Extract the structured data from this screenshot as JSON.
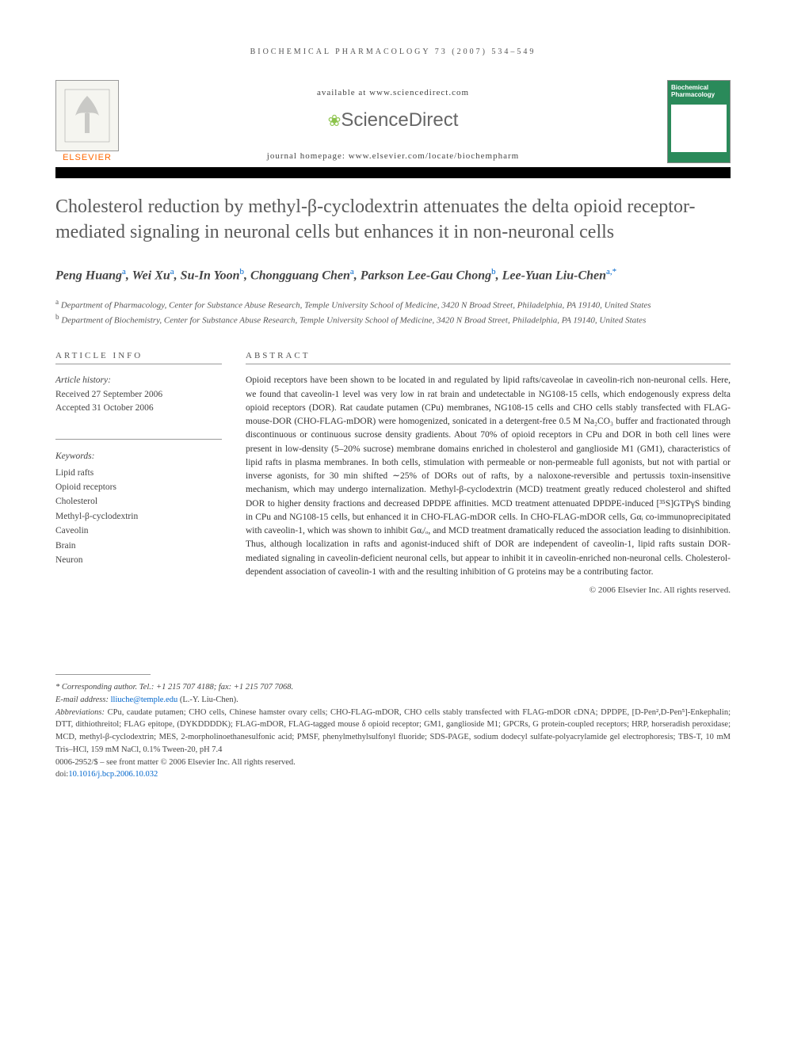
{
  "running_header": "BIOCHEMICAL PHARMACOLOGY 73 (2007) 534–549",
  "header": {
    "available_text": "available at www.sciencedirect.com",
    "sciencedirect_label": "ScienceDirect",
    "journal_homepage": "journal homepage: www.elsevier.com/locate/biochempharm",
    "elsevier_label": "ELSEVIER",
    "cover_title_1": "Biochemical",
    "cover_title_2": "Pharmacology"
  },
  "article": {
    "title": "Cholesterol reduction by methyl-β-cyclodextrin attenuates the delta opioid receptor-mediated signaling in neuronal cells but enhances it in non-neuronal cells",
    "authors_html": "Peng Huang<sup>a</sup>, Wei Xu<sup>a</sup>, Su-In Yoon<sup>b</sup>, Chongguang Chen<sup>a</sup>, Parkson Lee-Gau Chong<sup>b</sup>, Lee-Yuan Liu-Chen<sup>a,*</sup>",
    "affiliations": {
      "a": "Department of Pharmacology, Center for Substance Abuse Research, Temple University School of Medicine, 3420 N Broad Street, Philadelphia, PA 19140, United States",
      "b": "Department of Biochemistry, Center for Substance Abuse Research, Temple University School of Medicine, 3420 N Broad Street, Philadelphia, PA 19140, United States"
    }
  },
  "info": {
    "header": "ARTICLE INFO",
    "history_label": "Article history:",
    "received": "Received 27 September 2006",
    "accepted": "Accepted 31 October 2006",
    "keywords_label": "Keywords:",
    "keywords": [
      "Lipid rafts",
      "Opioid receptors",
      "Cholesterol",
      "Methyl-β-cyclodextrin",
      "Caveolin",
      "Brain",
      "Neuron"
    ]
  },
  "abstract": {
    "header": "ABSTRACT",
    "text": "Opioid receptors have been shown to be located in and regulated by lipid rafts/caveolae in caveolin-rich non-neuronal cells. Here, we found that caveolin-1 level was very low in rat brain and undetectable in NG108-15 cells, which endogenously express delta opioid receptors (DOR). Rat caudate putamen (CPu) membranes, NG108-15 cells and CHO cells stably transfected with FLAG-mouse-DOR (CHO-FLAG-mDOR) were homogenized, sonicated in a detergent-free 0.5 M Na₂CO₃ buffer and fractionated through discontinuous or continuous sucrose density gradients. About 70% of opioid receptors in CPu and DOR in both cell lines were present in low-density (5–20% sucrose) membrane domains enriched in cholesterol and ganglioside M1 (GM1), characteristics of lipid rafts in plasma membranes. In both cells, stimulation with permeable or non-permeable full agonists, but not with partial or inverse agonists, for 30 min shifted ∼25% of DORs out of rafts, by a naloxone-reversible and pertussis toxin-insensitive mechanism, which may undergo internalization. Methyl-β-cyclodextrin (MCD) treatment greatly reduced cholesterol and shifted DOR to higher density fractions and decreased DPDPE affinities. MCD treatment attenuated DPDPE-induced [³⁵S]GTPγS binding in CPu and NG108-15 cells, but enhanced it in CHO-FLAG-mDOR cells. In CHO-FLAG-mDOR cells, Gαᵢ co-immunoprecipitated with caveolin-1, which was shown to inhibit Gαᵢ/ₒ, and MCD treatment dramatically reduced the association leading to disinhibition. Thus, although localization in rafts and agonist-induced shift of DOR are independent of caveolin-1, lipid rafts sustain DOR-mediated signaling in caveolin-deficient neuronal cells, but appear to inhibit it in caveolin-enriched non-neuronal cells. Cholesterol-dependent association of caveolin-1 with and the resulting inhibition of G proteins may be a contributing factor.",
    "copyright": "© 2006 Elsevier Inc. All rights reserved."
  },
  "footer": {
    "corresponding": "* Corresponding author. Tel.: +1 215 707 4188; fax: +1 215 707 7068.",
    "email_label": "E-mail address: ",
    "email": "lliuche@temple.edu",
    "email_person": " (L.-Y. Liu-Chen).",
    "abbreviations_label": "Abbreviations:",
    "abbreviations": " CPu, caudate putamen; CHO cells, Chinese hamster ovary cells; CHO-FLAG-mDOR, CHO cells stably transfected with FLAG-mDOR cDNA; DPDPE, [D-Pen²,D-Pen⁵]-Enkephalin; DTT, dithiothreitol; FLAG epitope, (DYKDDDDK); FLAG-mDOR, FLAG-tagged mouse δ opioid receptor; GM1, ganglioside M1; GPCRs, G protein-coupled receptors; HRP, horseradish peroxidase; MCD, methyl-β-cyclodextrin; MES, 2-morpholinoethanesulfonic acid; PMSF, phenylmethylsulfonyl fluoride; SDS-PAGE, sodium dodecyl sulfate-polyacrylamide gel electrophoresis; TBS-T, 10 mM Tris–HCl, 159 mM NaCl, 0.1% Tween-20, pH 7.4",
    "front_matter": "0006-2952/$ – see front matter © 2006 Elsevier Inc. All rights reserved.",
    "doi_label": "doi:",
    "doi": "10.1016/j.bcp.2006.10.032"
  },
  "colors": {
    "title_gray": "#5a5a5a",
    "link_blue": "#0066cc",
    "elsevier_orange": "#ff6600",
    "cover_green": "#2a8a5a"
  }
}
